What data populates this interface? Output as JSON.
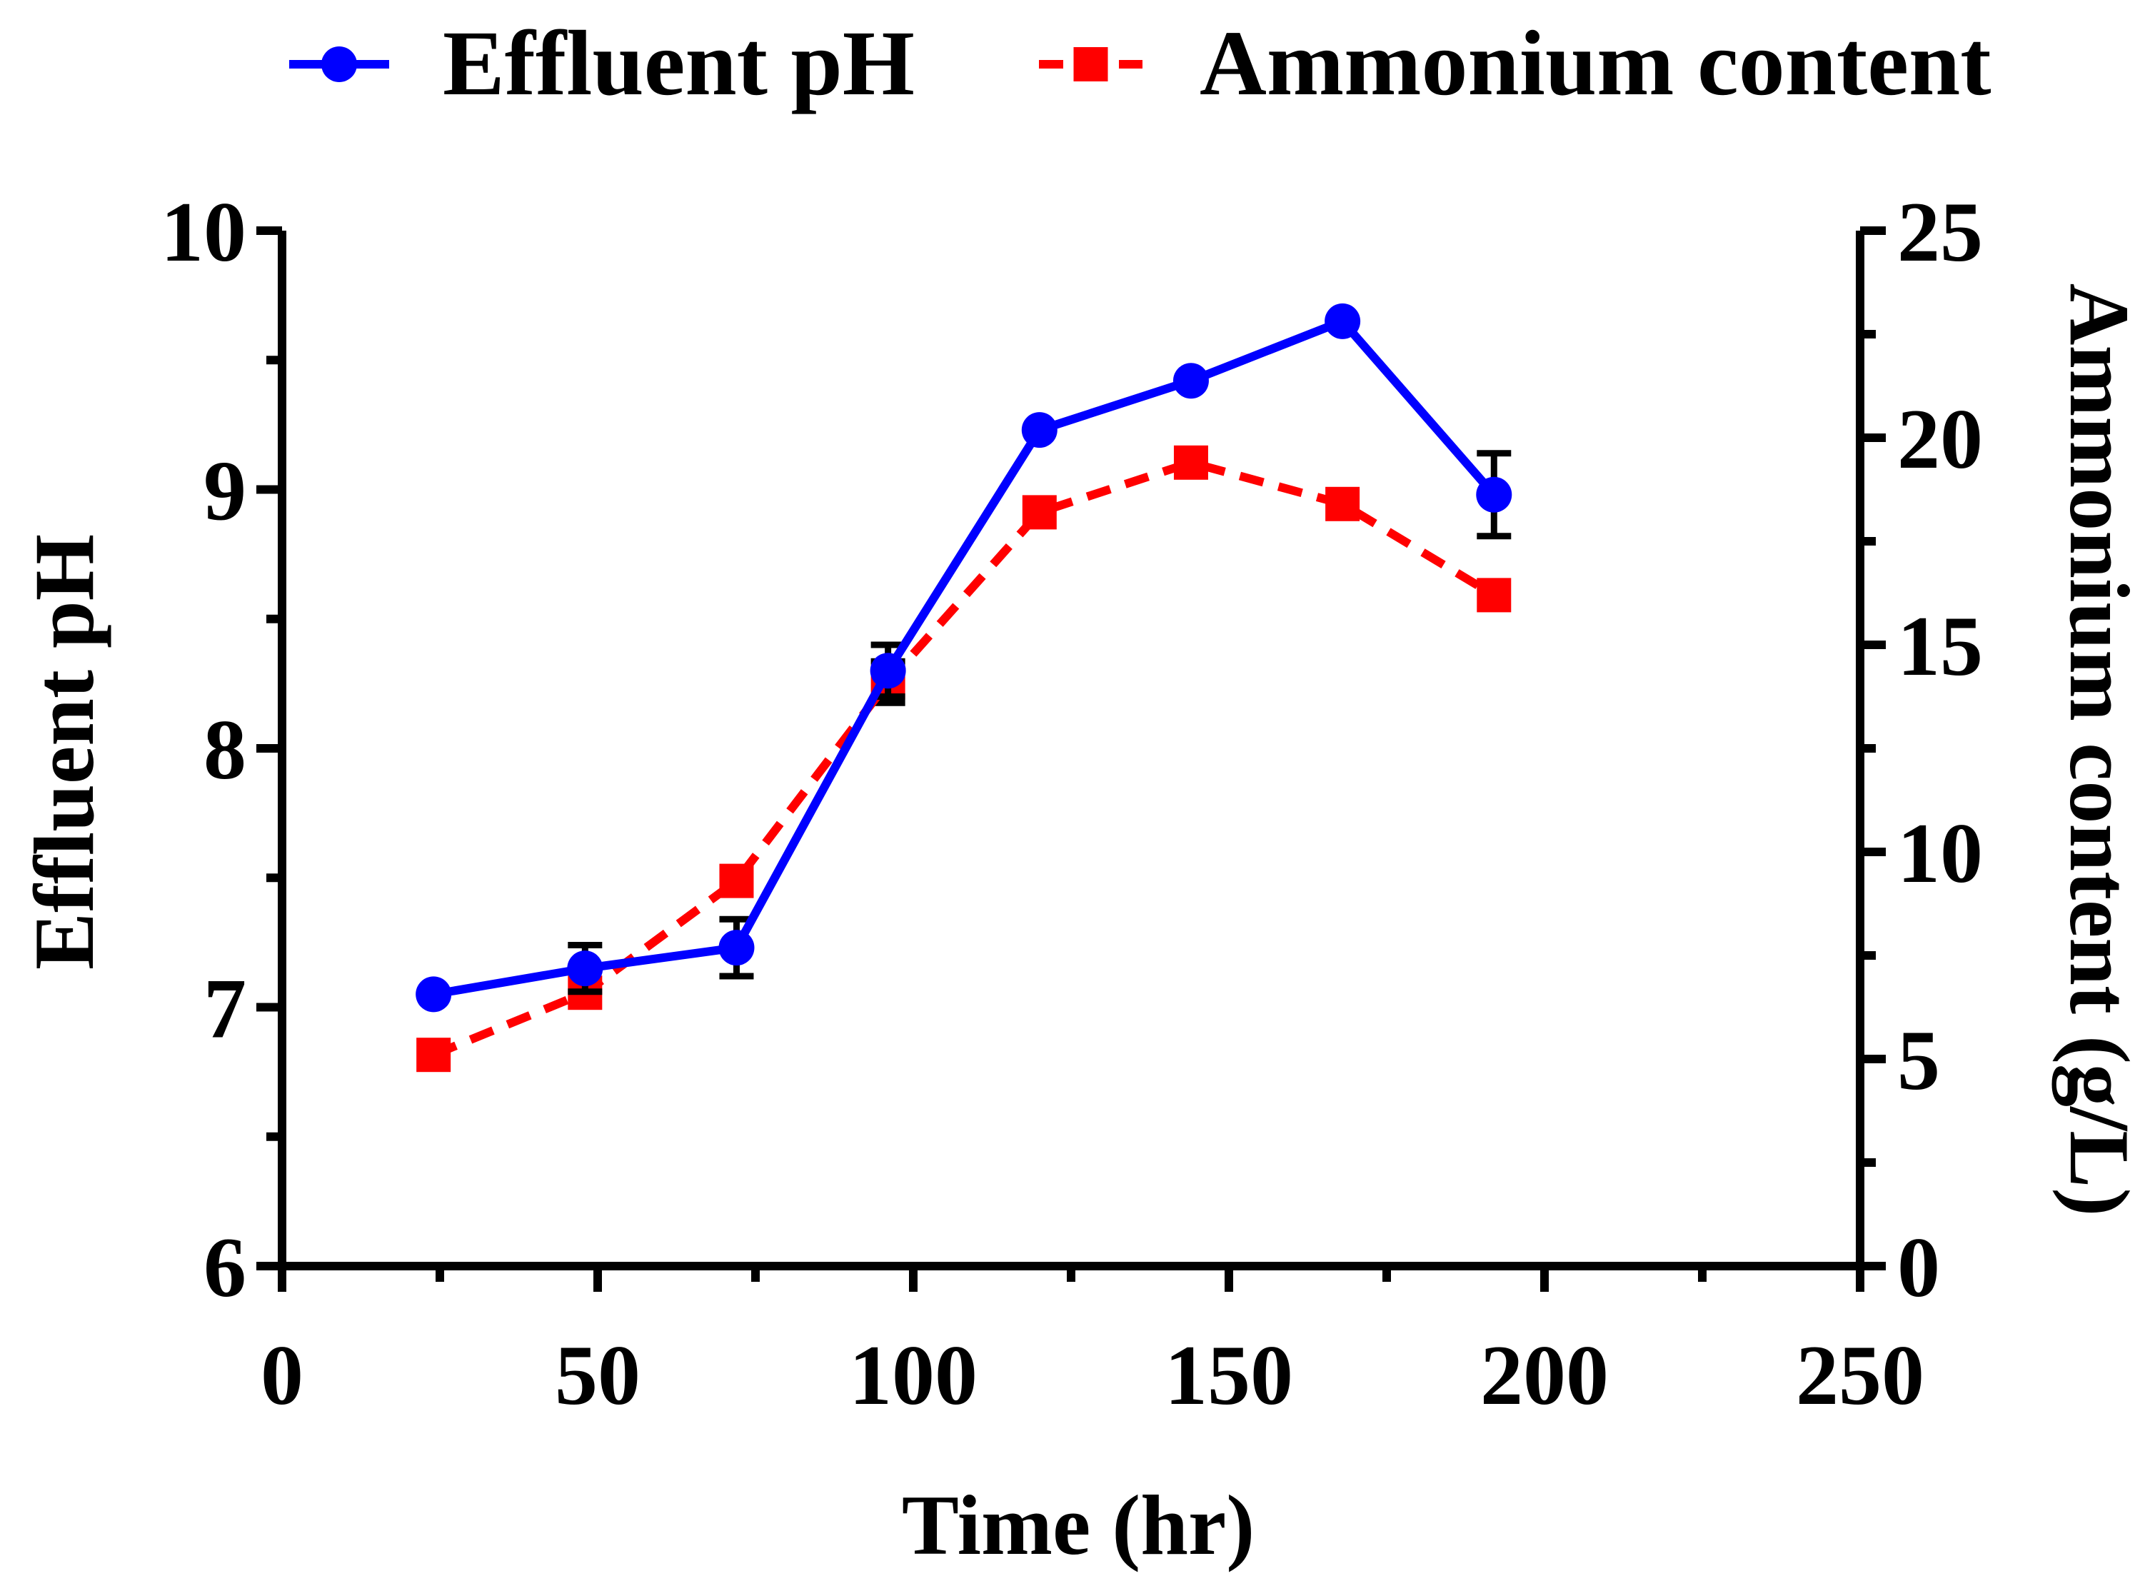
{
  "chart_data": {
    "type": "line",
    "x": [
      24,
      48,
      72,
      96,
      120,
      144,
      168,
      192
    ],
    "xlabel": "Time (hr)",
    "ylabel": "Effluent pH",
    "y2label": "Ammonium content (g/L)",
    "xlim": [
      0,
      250
    ],
    "ylim": [
      6,
      10
    ],
    "y2lim": [
      0,
      25
    ],
    "x_ticks": [
      0,
      50,
      100,
      150,
      200,
      250
    ],
    "y_ticks": [
      6,
      7,
      8,
      9,
      10
    ],
    "y2_ticks": [
      0,
      5,
      10,
      15,
      20,
      25
    ],
    "x_minor_ticks": [
      25,
      75,
      125,
      175,
      225
    ],
    "y_minor_ticks": [
      6.5,
      7.5,
      8.5,
      9.5
    ],
    "y2_minor_ticks": [
      2.5,
      7.5,
      12.5,
      17.5,
      22.5
    ],
    "legend_position": "top",
    "series": [
      {
        "name": "Effluent pH",
        "axis": "left",
        "color": "#0000ff",
        "marker": "circle",
        "line": "solid",
        "values": [
          7.05,
          7.15,
          7.23,
          8.3,
          9.23,
          9.42,
          9.65,
          8.98
        ],
        "errors": [
          0.0,
          0.09,
          0.11,
          0.1,
          0.0,
          0.0,
          0.0,
          0.16
        ]
      },
      {
        "name": "Ammonium content",
        "axis": "right",
        "color": "#ff0000",
        "marker": "square",
        "line": "dashed",
        "values": [
          5.1,
          6.6,
          9.3,
          14.1,
          18.2,
          19.4,
          18.4,
          16.2
        ],
        "errors": [
          0,
          0,
          0,
          0.5,
          0,
          0,
          0,
          0
        ]
      }
    ]
  }
}
